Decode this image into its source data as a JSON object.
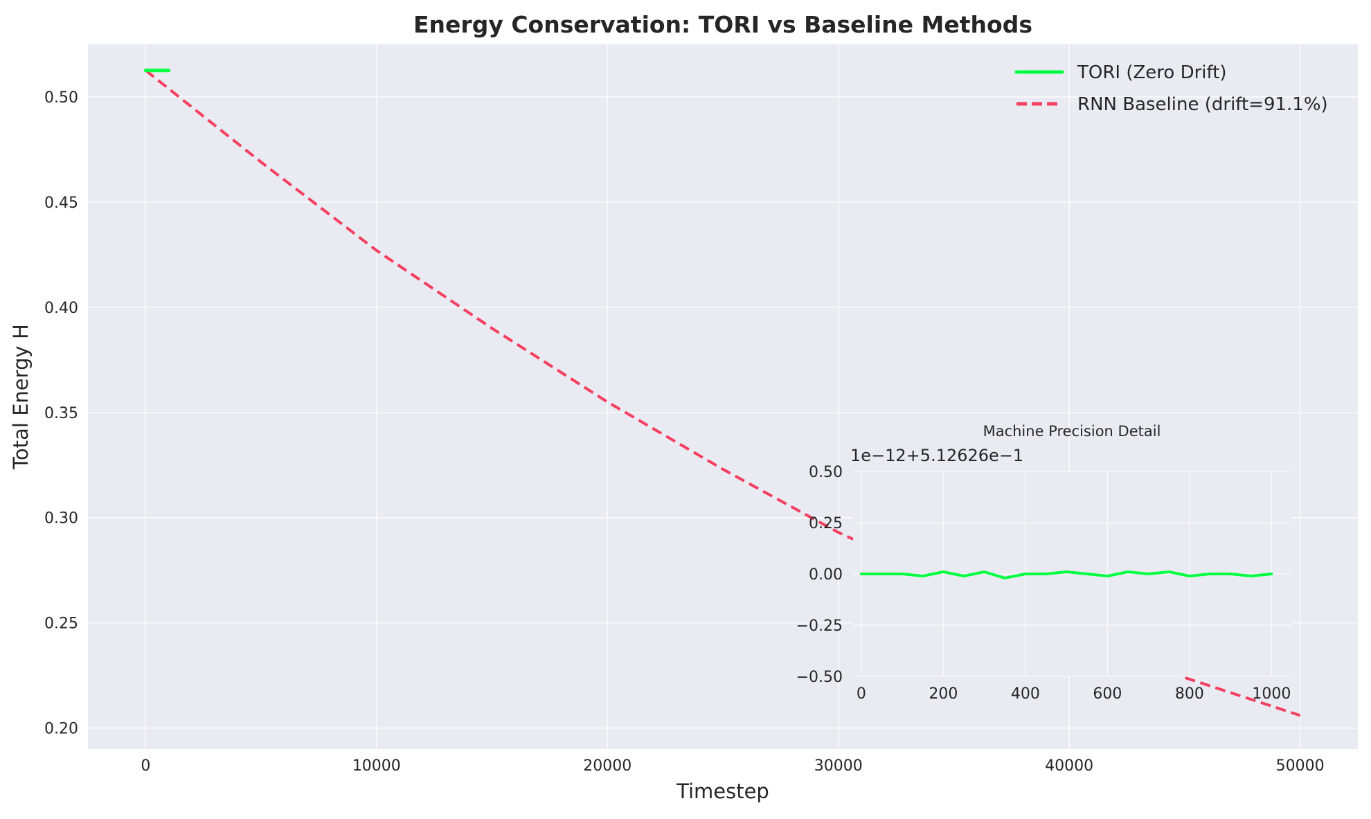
{
  "chart_data": [
    {
      "type": "line",
      "title": "Energy Conservation: TORI vs Baseline Methods",
      "xlabel": "Timestep",
      "ylabel": "Total Energy H",
      "xlim": [
        -2500,
        52500
      ],
      "ylim": [
        0.19,
        0.525
      ],
      "xticks": [
        0,
        10000,
        20000,
        30000,
        40000,
        50000
      ],
      "yticks": [
        0.2,
        0.25,
        0.3,
        0.35,
        0.4,
        0.45,
        0.5
      ],
      "grid": true,
      "legend_position": "top-right",
      "series": [
        {
          "name": "TORI (Zero Drift)",
          "color": "#00ff41",
          "style": "solid",
          "x": [
            0,
            1000
          ],
          "y": [
            0.5126,
            0.5126
          ]
        },
        {
          "name": "RNN Baseline (drift=91.1%)",
          "color": "#f43f5e",
          "style": "dashed",
          "x": [
            0,
            5000,
            10000,
            15000,
            20000,
            25000,
            30000,
            35000,
            40000,
            45000,
            50000
          ],
          "y": [
            0.5126,
            0.469,
            0.427,
            0.39,
            0.355,
            0.323,
            0.293,
            0.268,
            0.245,
            0.224,
            0.206
          ]
        }
      ]
    },
    {
      "type": "line",
      "title": "Machine Precision Detail",
      "offset_label": "1e−12+5.12626e−1",
      "xlim": [
        -20,
        1050
      ],
      "ylim": [
        -0.5,
        0.5
      ],
      "xticks": [
        0,
        200,
        400,
        600,
        800,
        1000
      ],
      "yticks": [
        0.5,
        0.25,
        0.0,
        -0.25,
        -0.5
      ],
      "tick_labels_y": [
        "0.50",
        "0.25",
        "0.00",
        "−0.25",
        "−0.50"
      ],
      "grid": true,
      "series": [
        {
          "color": "#00ff41",
          "style": "solid",
          "x": [
            0,
            50,
            100,
            150,
            200,
            250,
            300,
            350,
            400,
            450,
            500,
            550,
            600,
            650,
            700,
            750,
            800,
            850,
            900,
            950,
            1000
          ],
          "y": [
            0.0,
            0.0,
            0.0,
            -0.01,
            0.01,
            -0.01,
            0.01,
            -0.02,
            0.0,
            0.0,
            0.01,
            0.0,
            -0.01,
            0.01,
            0.0,
            0.01,
            -0.01,
            0.0,
            0.0,
            -0.01,
            0.0
          ]
        }
      ]
    }
  ]
}
